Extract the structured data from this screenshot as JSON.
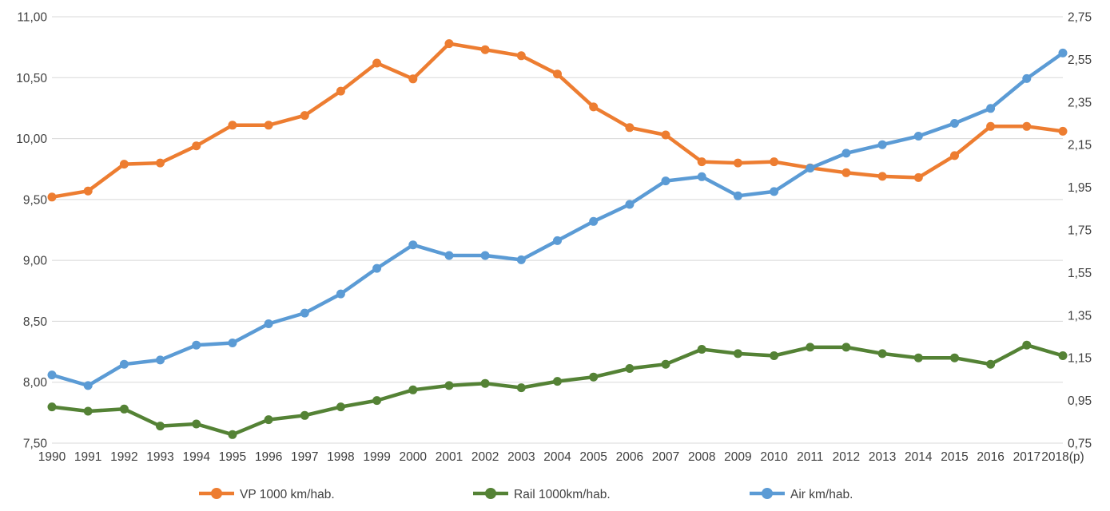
{
  "chart_data": {
    "type": "line",
    "title": "",
    "x_categories": [
      "1990",
      "1991",
      "1992",
      "1993",
      "1994",
      "1995",
      "1996",
      "1997",
      "1998",
      "1999",
      "2000",
      "2001",
      "2002",
      "2003",
      "2004",
      "2005",
      "2006",
      "2007",
      "2008",
      "2009",
      "2010",
      "2011",
      "2012",
      "2013",
      "2014",
      "2015",
      "2016",
      "2017",
      "2018(p)"
    ],
    "series": [
      {
        "name": "VP 1000 km/hab.",
        "axis": "left",
        "color": "#ED7D31",
        "values": [
          9.52,
          9.57,
          9.79,
          9.8,
          9.94,
          10.11,
          10.11,
          10.19,
          10.39,
          10.62,
          10.49,
          10.78,
          10.73,
          10.68,
          10.53,
          10.26,
          10.09,
          10.03,
          9.81,
          9.8,
          9.81,
          9.76,
          9.72,
          9.69,
          9.68,
          9.86,
          10.1,
          10.1,
          10.06
        ]
      },
      {
        "name": "Rail 1000km/hab.",
        "axis": "right",
        "color": "#548235",
        "values": [
          0.92,
          0.9,
          0.91,
          0.83,
          0.84,
          0.79,
          0.86,
          0.88,
          0.92,
          0.95,
          1.0,
          1.02,
          1.03,
          1.01,
          1.04,
          1.06,
          1.1,
          1.12,
          1.19,
          1.17,
          1.16,
          1.2,
          1.2,
          1.17,
          1.15,
          1.15,
          1.12,
          1.21,
          1.16
        ]
      },
      {
        "name": "Air km/hab.",
        "axis": "right",
        "color": "#5B9BD5",
        "values": [
          1.07,
          1.02,
          1.12,
          1.14,
          1.21,
          1.22,
          1.31,
          1.36,
          1.45,
          1.57,
          1.68,
          1.63,
          1.63,
          1.61,
          1.7,
          1.79,
          1.87,
          1.98,
          2.0,
          1.91,
          1.93,
          2.04,
          2.11,
          2.15,
          2.19,
          2.25,
          2.32,
          2.46,
          2.58
        ]
      }
    ],
    "left_axis": {
      "min": 7.5,
      "max": 11.0,
      "step": 0.5,
      "tick_labels": [
        "11,00",
        "10,50",
        "10,00",
        "9,50",
        "9,00",
        "8,50",
        "8,00",
        "7,50"
      ]
    },
    "right_axis": {
      "min": 0.75,
      "max": 2.75,
      "step": 0.2,
      "tick_labels": [
        "2,75",
        "2,55",
        "2,35",
        "2,15",
        "1,95",
        "1,75",
        "1,55",
        "1,35",
        "1,15",
        "0,95",
        "0,75"
      ]
    },
    "grid": true,
    "legend_position": "bottom",
    "legend": {
      "items": [
        "VP 1000 km/hab.",
        "Rail 1000km/hab.",
        "Air km/hab."
      ]
    },
    "colors": {
      "grid": "#D8D8D8",
      "text": "#404040",
      "background": "#FFFFFF"
    }
  }
}
